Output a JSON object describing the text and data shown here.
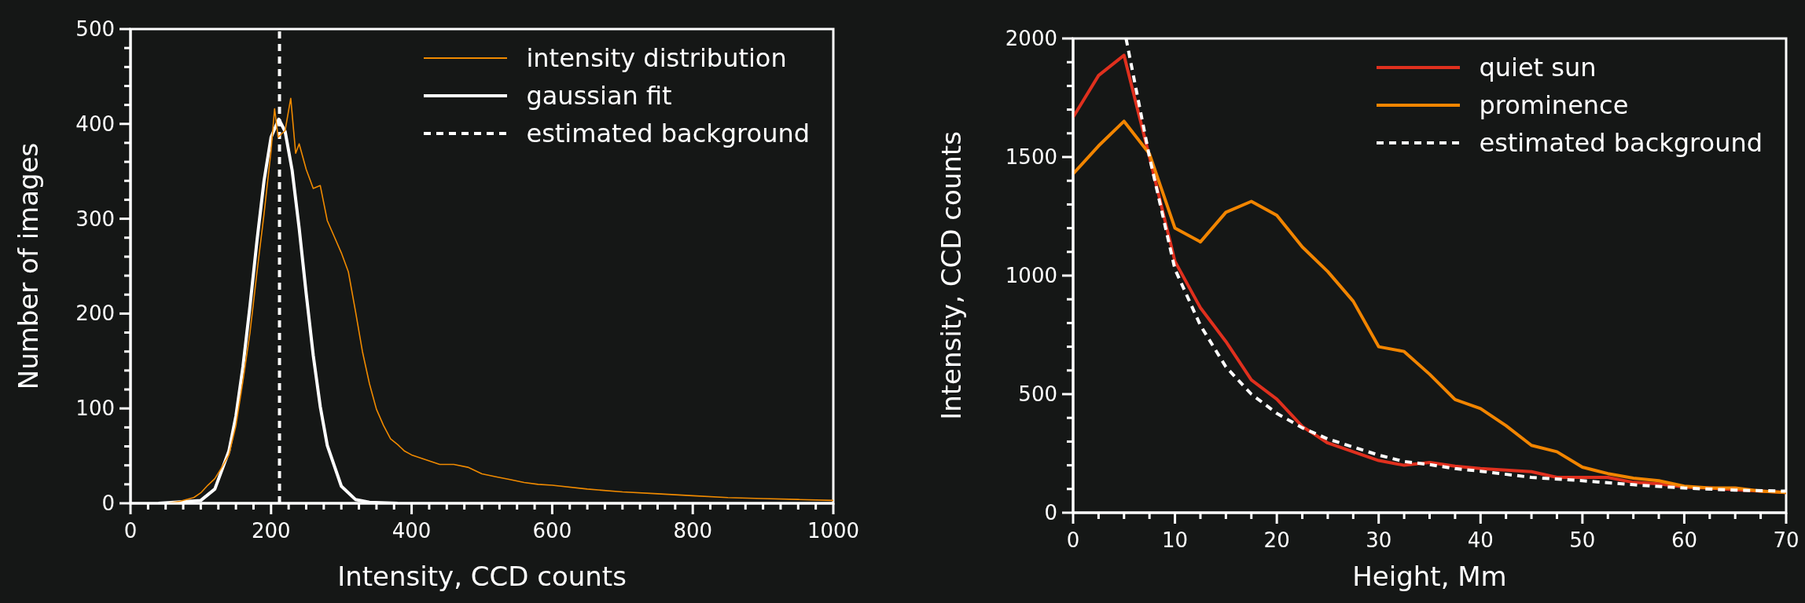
{
  "chart_data": [
    {
      "type": "line",
      "xlabel": "Intensity, CCD counts",
      "ylabel": "Number of images",
      "xlim": [
        0,
        1000
      ],
      "ylim": [
        0,
        500
      ],
      "legend": "top right",
      "xticks": [
        0,
        {
          "value": 25,
          "label": null
        },
        {
          "value": 50,
          "label": null
        },
        {
          "value": 75,
          "label": null
        },
        {
          "value": 100,
          "label": null
        },
        {
          "value": 125,
          "label": null
        },
        {
          "value": 150,
          "label": null
        },
        {
          "value": 175,
          "label": null
        },
        200,
        {
          "value": 225,
          "label": null
        },
        {
          "value": 250,
          "label": null
        },
        {
          "value": 275,
          "label": null
        },
        {
          "value": 300,
          "label": null
        },
        {
          "value": 325,
          "label": null
        },
        {
          "value": 350,
          "label": null
        },
        {
          "value": 375,
          "label": null
        },
        400,
        {
          "value": 425,
          "label": null
        },
        {
          "value": 450,
          "label": null
        },
        {
          "value": 475,
          "label": null
        },
        {
          "value": 500,
          "label": null
        },
        {
          "value": 525,
          "label": null
        },
        {
          "value": 550,
          "label": null
        },
        {
          "value": 575,
          "label": null
        },
        600,
        {
          "value": 625,
          "label": null
        },
        {
          "value": 650,
          "label": null
        },
        {
          "value": 675,
          "label": null
        },
        {
          "value": 700,
          "label": null
        },
        {
          "value": 725,
          "label": null
        },
        {
          "value": 750,
          "label": null
        },
        {
          "value": 775,
          "label": null
        },
        800,
        {
          "value": 825,
          "label": null
        },
        {
          "value": 850,
          "label": null
        },
        {
          "value": 875,
          "label": null
        },
        {
          "value": 900,
          "label": null
        },
        {
          "value": 925,
          "label": null
        },
        {
          "value": 950,
          "label": null
        },
        {
          "value": 975,
          "label": null
        },
        1000
      ],
      "yticks": [
        0,
        {
          "value": 20,
          "label": null
        },
        {
          "value": 40,
          "label": null
        },
        {
          "value": 60,
          "label": null
        },
        {
          "value": 80,
          "label": null
        },
        100,
        {
          "value": 120,
          "label": null
        },
        {
          "value": 140,
          "label": null
        },
        {
          "value": 160,
          "label": null
        },
        {
          "value": 180,
          "label": null
        },
        200,
        {
          "value": 220,
          "label": null
        },
        {
          "value": 240,
          "label": null
        },
        {
          "value": 260,
          "label": null
        },
        {
          "value": 280,
          "label": null
        },
        300,
        {
          "value": 320,
          "label": null
        },
        {
          "value": 340,
          "label": null
        },
        {
          "value": 360,
          "label": null
        },
        {
          "value": 380,
          "label": null
        },
        400,
        {
          "value": 420,
          "label": null
        },
        {
          "value": 440,
          "label": null
        },
        {
          "value": 460,
          "label": null
        },
        {
          "value": 480,
          "label": null
        },
        500
      ],
      "series": [
        {
          "name": "intensity distribution",
          "color": "#f08a00",
          "x": [
            40,
            50,
            70,
            90,
            100,
            110,
            120,
            130,
            140,
            150,
            160,
            170,
            180,
            190,
            200,
            205,
            210,
            220,
            228,
            235,
            240,
            250,
            260,
            270,
            280,
            290,
            300,
            310,
            320,
            330,
            340,
            350,
            360,
            370,
            380,
            390,
            400,
            420,
            440,
            460,
            480,
            500,
            520,
            540,
            560,
            580,
            600,
            650,
            700,
            750,
            800,
            850,
            900,
            950,
            1000
          ],
          "values": [
            0,
            0,
            2,
            6,
            11,
            19,
            26,
            38,
            51,
            82,
            129,
            180,
            244,
            305,
            372,
            416,
            386,
            393,
            427,
            369,
            379,
            352,
            332,
            335,
            298,
            281,
            264,
            244,
            203,
            160,
            126,
            99,
            82,
            68,
            62,
            55,
            51,
            46,
            41,
            41,
            38,
            31,
            28,
            25,
            22,
            20,
            19,
            15,
            12,
            10,
            8,
            6,
            5,
            4,
            3
          ]
        },
        {
          "name": "gaussian fit",
          "color": "#ffffff",
          "x": [
            40,
            100,
            120,
            140,
            150,
            160,
            170,
            180,
            190,
            200,
            211,
            220,
            230,
            240,
            250,
            260,
            270,
            280,
            300,
            320,
            340,
            380
          ],
          "values": [
            0,
            3,
            15,
            55,
            92,
            144,
            208,
            277,
            340,
            386,
            405,
            392,
            351,
            290,
            221,
            156,
            102,
            61,
            18,
            4,
            1,
            0
          ]
        },
        {
          "name": "estimated background",
          "color": "#ffffff",
          "line_style": "dashed",
          "x": [
            212,
            212
          ],
          "values": [
            0,
            500
          ]
        }
      ]
    },
    {
      "type": "line",
      "xlabel": "Height, Mm",
      "ylabel": "Intensity, CCD counts",
      "xlim": [
        0,
        70
      ],
      "ylim": [
        0,
        2000
      ],
      "legend": "top right",
      "xticks": [
        0,
        {
          "value": 2.5,
          "label": null
        },
        {
          "value": 5,
          "label": null
        },
        {
          "value": 7.5,
          "label": null
        },
        10,
        {
          "value": 12.5,
          "label": null
        },
        {
          "value": 15,
          "label": null
        },
        {
          "value": 17.5,
          "label": null
        },
        20,
        {
          "value": 22.5,
          "label": null
        },
        {
          "value": 25,
          "label": null
        },
        {
          "value": 27.5,
          "label": null
        },
        30,
        {
          "value": 32.5,
          "label": null
        },
        {
          "value": 35,
          "label": null
        },
        {
          "value": 37.5,
          "label": null
        },
        40,
        {
          "value": 42.5,
          "label": null
        },
        {
          "value": 45,
          "label": null
        },
        {
          "value": 47.5,
          "label": null
        },
        50,
        {
          "value": 52.5,
          "label": null
        },
        {
          "value": 55,
          "label": null
        },
        {
          "value": 57.5,
          "label": null
        },
        60,
        {
          "value": 62.5,
          "label": null
        },
        {
          "value": 65,
          "label": null
        },
        {
          "value": 67.5,
          "label": null
        },
        70
      ],
      "yticks": [
        0,
        {
          "value": 100,
          "label": null
        },
        {
          "value": 200,
          "label": null
        },
        {
          "value": 300,
          "label": null
        },
        {
          "value": 400,
          "label": null
        },
        500,
        {
          "value": 600,
          "label": null
        },
        {
          "value": 700,
          "label": null
        },
        {
          "value": 800,
          "label": null
        },
        {
          "value": 900,
          "label": null
        },
        1000,
        {
          "value": 1100,
          "label": null
        },
        {
          "value": 1200,
          "label": null
        },
        {
          "value": 1300,
          "label": null
        },
        {
          "value": 1400,
          "label": null
        },
        1500,
        {
          "value": 1600,
          "label": null
        },
        {
          "value": 1700,
          "label": null
        },
        {
          "value": 1800,
          "label": null
        },
        {
          "value": 1900,
          "label": null
        },
        2000
      ],
      "series": [
        {
          "name": "quiet sun",
          "color": "#e0301e",
          "x": [
            0,
            2.5,
            5,
            7.5,
            10,
            12.5,
            15,
            17.5,
            20,
            22.5,
            25,
            27.5,
            30,
            32.5,
            35,
            37.5,
            40,
            42.5,
            45,
            47.5,
            50,
            52.5,
            55,
            57.5,
            60,
            62.5,
            65,
            67.5,
            70
          ],
          "values": [
            1668,
            1844,
            1929,
            1500,
            1060,
            864,
            722,
            560,
            479,
            364,
            294,
            257,
            220,
            200,
            212,
            196,
            186,
            180,
            173,
            149,
            149,
            149,
            128,
            122,
            108,
            104,
            97,
            91,
            85
          ]
        },
        {
          "name": "prominence",
          "color": "#f28500",
          "x": [
            0,
            2.5,
            5,
            7.5,
            10,
            12.5,
            15,
            17.5,
            20,
            22.5,
            25,
            27.5,
            30,
            32.5,
            35,
            37.5,
            40,
            42.5,
            45,
            47.5,
            50,
            52.5,
            55,
            57.5,
            60,
            62.5,
            65,
            67.5,
            70
          ],
          "values": [
            1429,
            1547,
            1651,
            1513,
            1200,
            1142,
            1267,
            1313,
            1254,
            1121,
            1017,
            892,
            700,
            680,
            584,
            477,
            439,
            367,
            284,
            257,
            192,
            165,
            146,
            135,
            112,
            104,
            104,
            91,
            85
          ]
        },
        {
          "name": "estimated background",
          "color": "#ffffff",
          "line_style": "dashed",
          "x": [
            5.2,
            7.5,
            10,
            12.5,
            15,
            17.5,
            20,
            22.5,
            25,
            27.5,
            30,
            32.5,
            35,
            37.5,
            40,
            45,
            50,
            55,
            60,
            65,
            70
          ],
          "values": [
            2000,
            1500,
            1027,
            790,
            615,
            500,
            419,
            358,
            311,
            277,
            243,
            216,
            203,
            186,
            175,
            149,
            135,
            118,
            104,
            95,
            91
          ]
        }
      ]
    }
  ]
}
